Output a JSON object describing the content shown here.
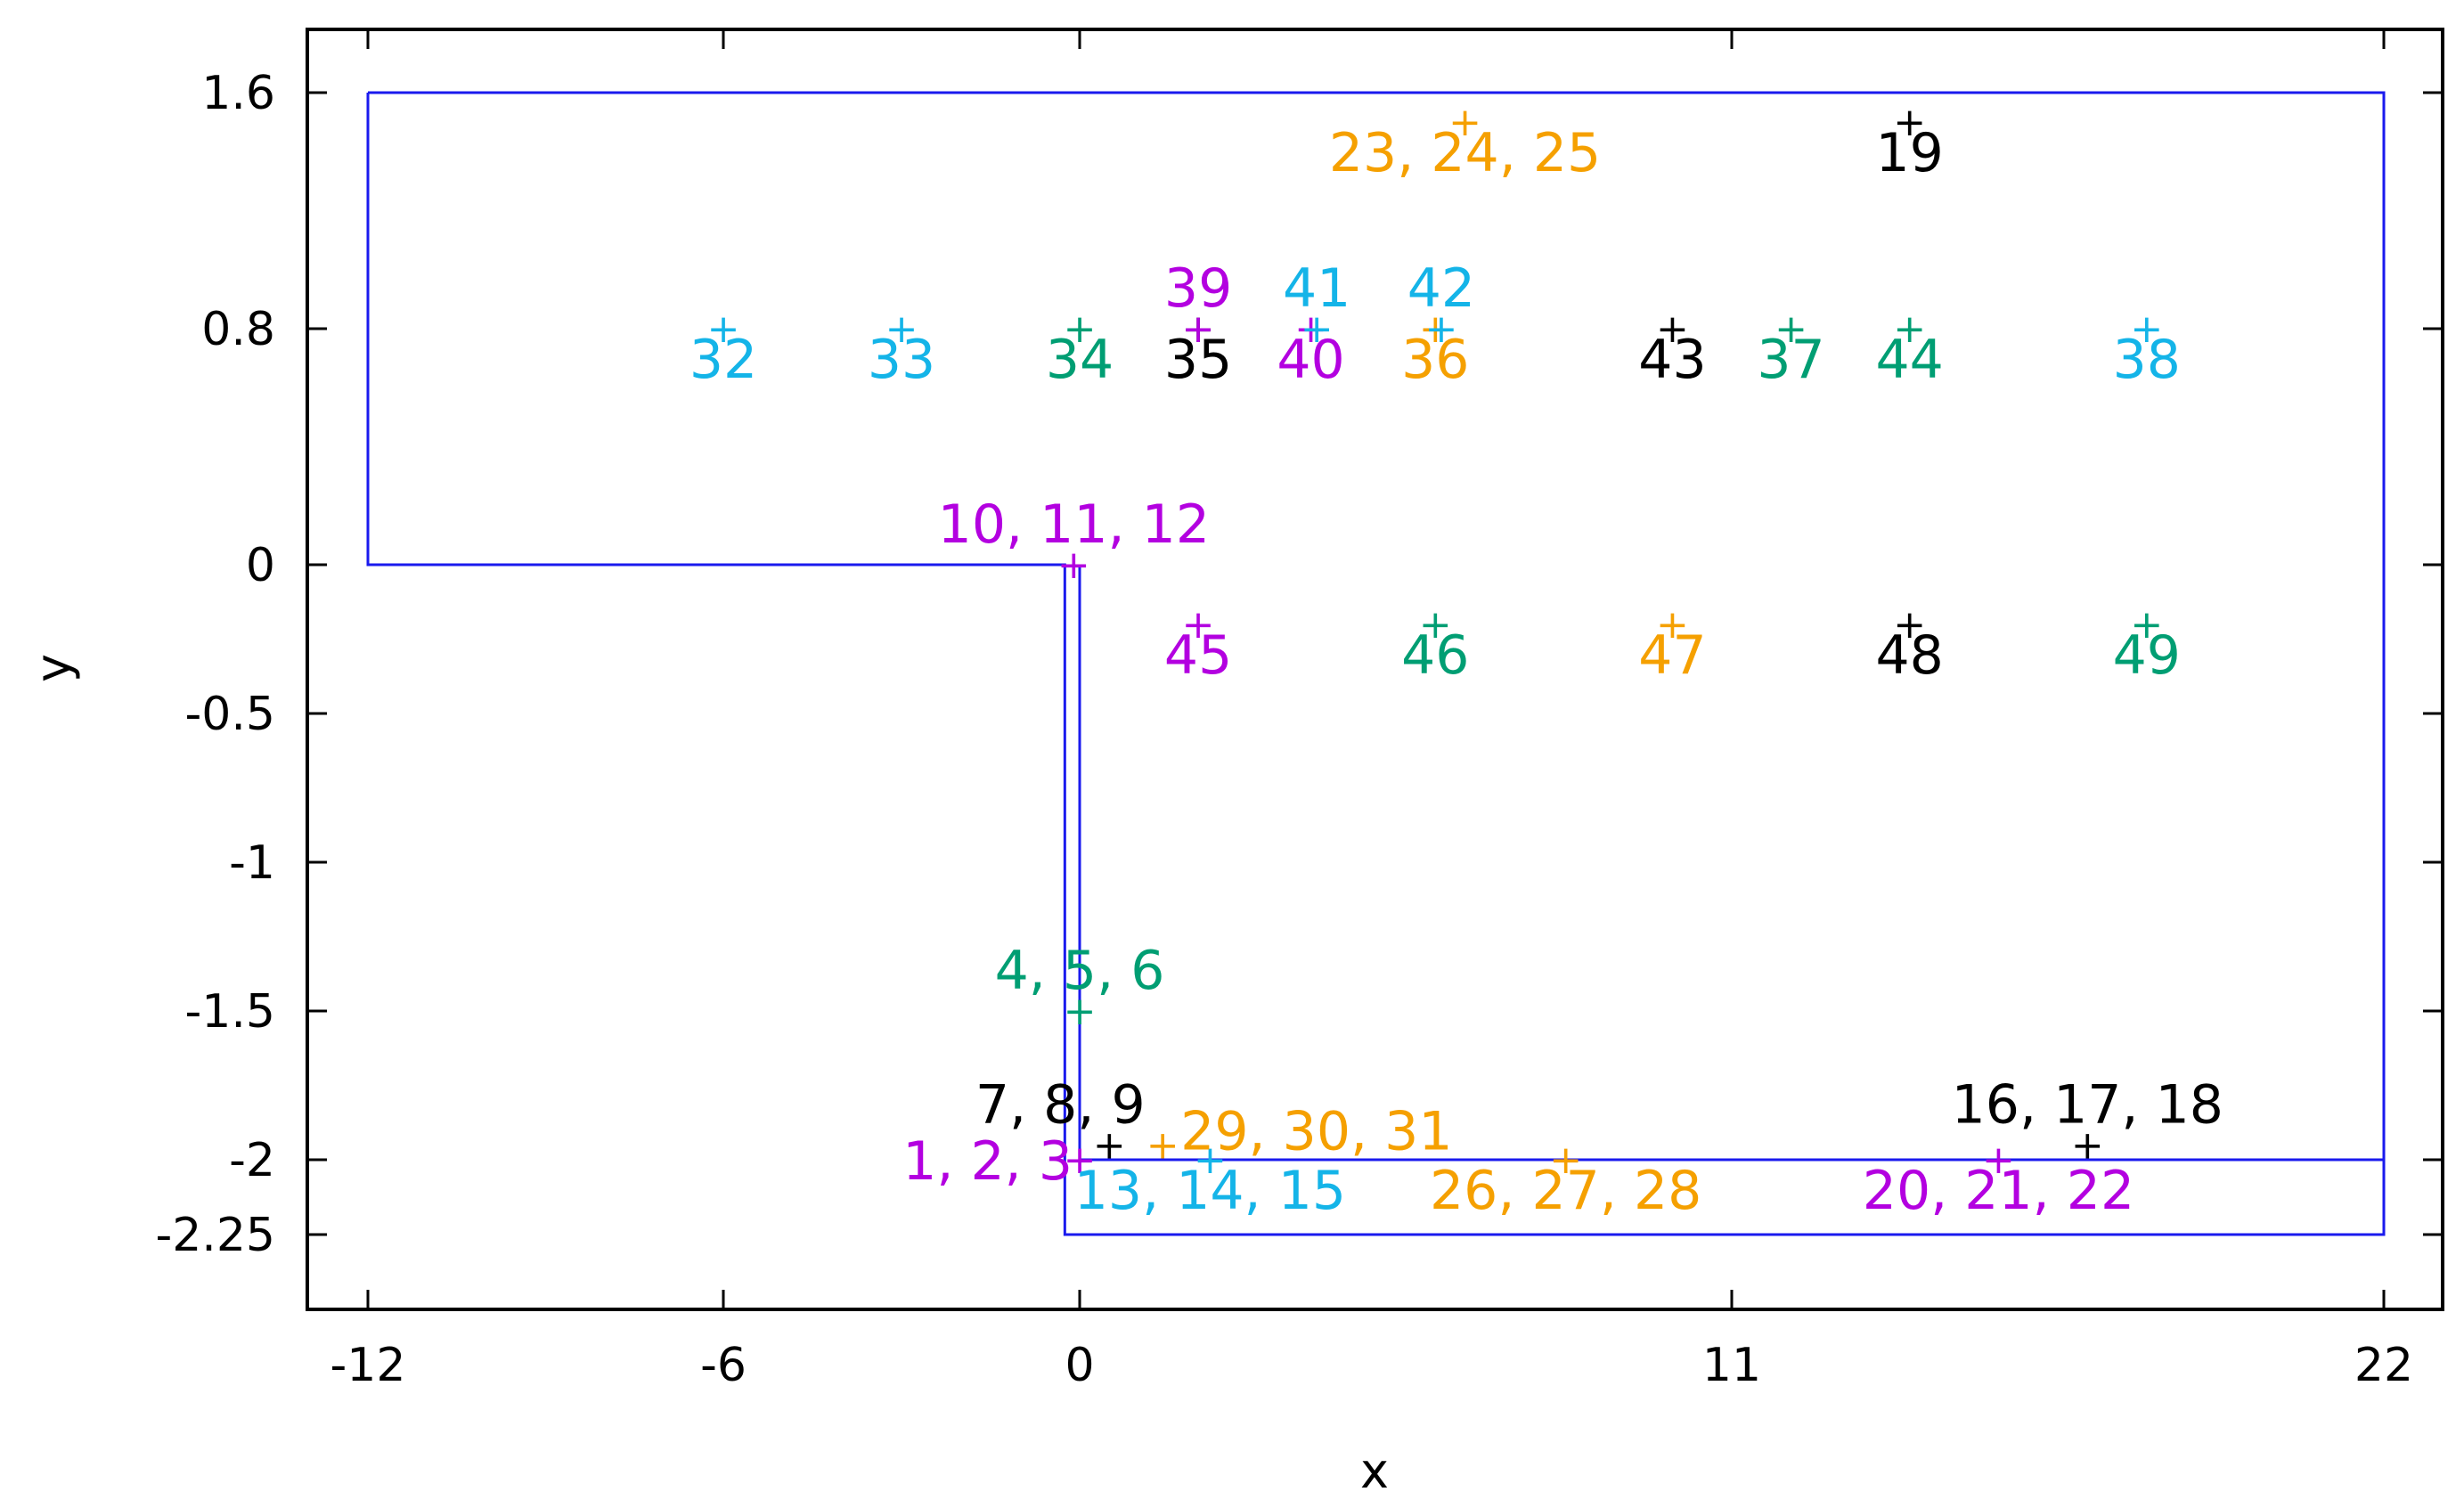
{
  "chart_data": {
    "type": "scatter",
    "title": "",
    "xlabel": "x",
    "ylabel": "y",
    "xlim": [
      -13,
      24.5
    ],
    "x_ticks": [
      -12,
      -6,
      0,
      11,
      22
    ],
    "x_tick_labels": [
      "-12",
      "-6",
      "0",
      "11",
      "22"
    ],
    "x_axis_break": {
      "segments": [
        [
          -12,
          0
        ],
        [
          0,
          11
        ],
        [
          11,
          22
        ]
      ]
    },
    "ylim": [
      -2.5,
      1.85
    ],
    "y_ticks": [
      1.6,
      0.8,
      0,
      -0.5,
      -1,
      -1.5,
      -2,
      -2.25
    ],
    "y_tick_labels": [
      "1.6",
      "0.8",
      "0",
      "-0.5",
      "-1",
      "-1.5",
      "-2",
      "-2.25"
    ],
    "grid": false,
    "legend": "none",
    "colors": {
      "boundary": "#1a1aee",
      "magenta": "#b300e0",
      "green": "#009e73",
      "black": "#000000",
      "orange": "#f5a000",
      "cyan": "#14b4e8"
    },
    "boundary": {
      "outer": [
        [
          -12,
          1.6
        ],
        [
          22,
          1.6
        ],
        [
          22,
          -2.25
        ],
        [
          -0.25,
          -2.25
        ],
        [
          -0.25,
          0
        ],
        [
          -12,
          0
        ],
        [
          -12,
          1.6
        ]
      ],
      "inner": [
        [
          0,
          0
        ],
        [
          0,
          -2
        ],
        [
          22,
          -2
        ]
      ]
    },
    "points": [
      {
        "x": 0,
        "y": -2,
        "label": "1, 2, 3",
        "color": "magenta",
        "pos": "left"
      },
      {
        "x": 0,
        "y": -1.5,
        "label": "4, 5, 6",
        "color": "green",
        "pos": "above"
      },
      {
        "x": 0.5,
        "y": -1.95,
        "label": "7, 8, 9",
        "color": "black",
        "pos": "above-left"
      },
      {
        "x": -0.1,
        "y": 0,
        "label": "10, 11, 12",
        "color": "magenta",
        "pos": "above"
      },
      {
        "x": 2.2,
        "y": -2,
        "label": "13, 14, 15",
        "color": "cyan",
        "pos": "below"
      },
      {
        "x": 17,
        "y": -1.95,
        "label": "16, 17, 18",
        "color": "black",
        "pos": "above"
      },
      {
        "x": 14,
        "y": 1.5,
        "label": "19",
        "color": "black",
        "pos": "below"
      },
      {
        "x": 15.5,
        "y": -2,
        "label": "20, 21, 22",
        "color": "magenta",
        "pos": "below"
      },
      {
        "x": 6.5,
        "y": 1.5,
        "label": "23, 24, 25",
        "color": "orange",
        "pos": "below"
      },
      {
        "x": 8.2,
        "y": -2,
        "label": "26, 27, 28",
        "color": "orange",
        "pos": "below"
      },
      {
        "x": 1.4,
        "y": -1.95,
        "label": "29, 30, 31",
        "color": "orange",
        "pos": "right"
      },
      {
        "x": -6,
        "y": 0.8,
        "label": "32",
        "color": "cyan",
        "pos": "below"
      },
      {
        "x": -3,
        "y": 0.8,
        "label": "33",
        "color": "cyan",
        "pos": "below"
      },
      {
        "x": 0,
        "y": 0.8,
        "label": "34",
        "color": "green",
        "pos": "below"
      },
      {
        "x": 2,
        "y": 0.8,
        "label": "35",
        "color": "black",
        "pos": "below"
      },
      {
        "x": 6,
        "y": 0.8,
        "label": "36",
        "color": "orange",
        "pos": "below"
      },
      {
        "x": 12,
        "y": 0.8,
        "label": "37",
        "color": "green",
        "pos": "below"
      },
      {
        "x": 18,
        "y": 0.8,
        "label": "38",
        "color": "cyan",
        "pos": "below"
      },
      {
        "x": 2,
        "y": 0.8,
        "label": "39",
        "color": "magenta",
        "pos": "above"
      },
      {
        "x": 3.9,
        "y": 0.8,
        "label": "40",
        "color": "magenta",
        "pos": "below"
      },
      {
        "x": 4,
        "y": 0.8,
        "label": "41",
        "color": "cyan",
        "pos": "above"
      },
      {
        "x": 6.1,
        "y": 0.8,
        "label": "42",
        "color": "cyan",
        "pos": "above"
      },
      {
        "x": 10,
        "y": 0.8,
        "label": "43",
        "color": "black",
        "pos": "below"
      },
      {
        "x": 14,
        "y": 0.8,
        "label": "44",
        "color": "green",
        "pos": "below"
      },
      {
        "x": 2,
        "y": -0.2,
        "label": "45",
        "color": "magenta",
        "pos": "below"
      },
      {
        "x": 6,
        "y": -0.2,
        "label": "46",
        "color": "green",
        "pos": "below"
      },
      {
        "x": 10,
        "y": -0.2,
        "label": "47",
        "color": "orange",
        "pos": "below"
      },
      {
        "x": 14,
        "y": -0.2,
        "label": "48",
        "color": "black",
        "pos": "below"
      },
      {
        "x": 18,
        "y": -0.2,
        "label": "49",
        "color": "green",
        "pos": "below"
      }
    ]
  }
}
